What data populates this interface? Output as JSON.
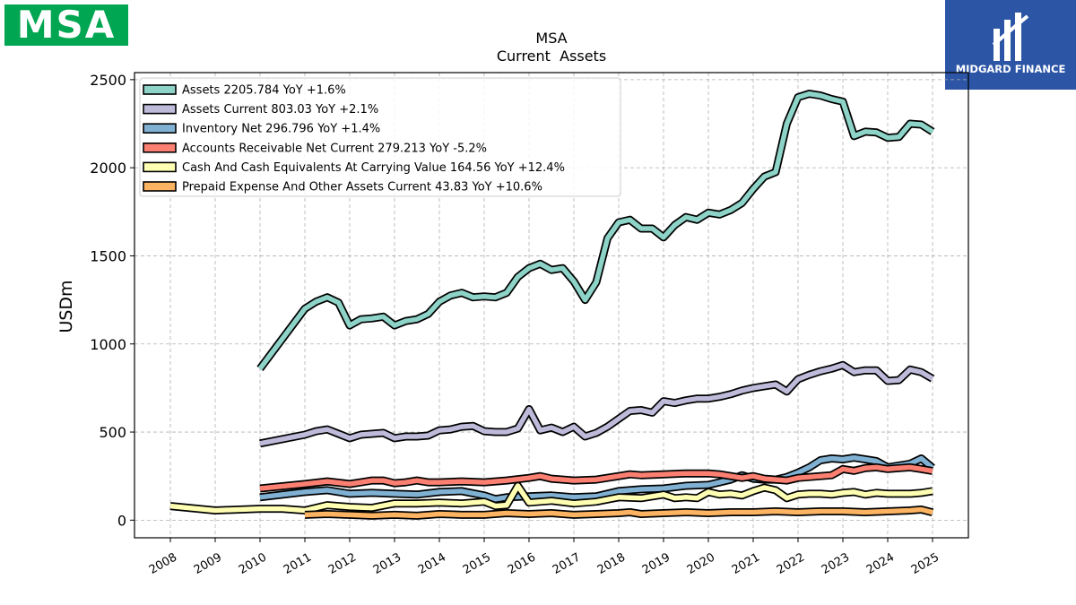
{
  "branding": {
    "left_logo_text": "MSA",
    "left_logo_color": "#00a651",
    "right_logo_text": "MIDGARD FINANCE",
    "right_logo_color": "#2c55a6"
  },
  "chart_data": {
    "type": "line",
    "title": "MSA",
    "subtitle": "Current  Assets",
    "ylabel": "USDm",
    "xlabel": "",
    "ylim": [
      -100,
      2540
    ],
    "xlim": [
      2007.2,
      2025.8
    ],
    "yticks": [
      0,
      500,
      1000,
      1500,
      2000,
      2500
    ],
    "xticks": [
      "2008",
      "2009",
      "2010",
      "2011",
      "2012",
      "2013",
      "2014",
      "2015",
      "2016",
      "2017",
      "2018",
      "2019",
      "2020",
      "2021",
      "2022",
      "2023",
      "2024",
      "2025"
    ],
    "grid": true,
    "legend_position": "top-left",
    "series": [
      {
        "name": "Assets  2205.784 YoY +1.6%",
        "color": "#8dd3c7",
        "x": [
          2010.0,
          2011.0,
          2011.25,
          2011.5,
          2011.75,
          2012.0,
          2012.25,
          2012.5,
          2012.75,
          2013.0,
          2013.25,
          2013.5,
          2013.75,
          2014.0,
          2014.25,
          2014.5,
          2014.75,
          2015.0,
          2015.25,
          2015.5,
          2015.75,
          2016.0,
          2016.25,
          2016.5,
          2016.75,
          2017.0,
          2017.25,
          2017.5,
          2017.75,
          2018.0,
          2018.25,
          2018.5,
          2018.75,
          2019.0,
          2019.25,
          2019.5,
          2019.75,
          2020.0,
          2020.25,
          2020.5,
          2020.75,
          2021.0,
          2021.25,
          2021.5,
          2021.75,
          2022.0,
          2022.25,
          2022.5,
          2022.75,
          2023.0,
          2023.25,
          2023.5,
          2023.75,
          2024.0,
          2024.25,
          2024.5,
          2024.75,
          2025.0
        ],
        "y": [
          860,
          1200,
          1240,
          1265,
          1235,
          1105,
          1140,
          1145,
          1155,
          1105,
          1130,
          1140,
          1170,
          1240,
          1275,
          1290,
          1265,
          1270,
          1265,
          1290,
          1380,
          1430,
          1455,
          1420,
          1430,
          1355,
          1250,
          1350,
          1600,
          1690,
          1705,
          1655,
          1655,
          1605,
          1675,
          1720,
          1705,
          1745,
          1735,
          1760,
          1800,
          1880,
          1950,
          1975,
          2250,
          2400,
          2420,
          2410,
          2390,
          2375,
          2180,
          2205,
          2200,
          2170,
          2175,
          2250,
          2245,
          2205
        ]
      },
      {
        "name": "Assets Current  803.03 YoY +2.1%",
        "color": "#bebada",
        "x": [
          2010.0,
          2011.0,
          2011.25,
          2011.5,
          2011.75,
          2012.0,
          2012.25,
          2012.5,
          2012.75,
          2013.0,
          2013.25,
          2013.5,
          2013.75,
          2014.0,
          2014.25,
          2014.5,
          2014.75,
          2015.0,
          2015.25,
          2015.5,
          2015.75,
          2016.0,
          2016.25,
          2016.5,
          2016.75,
          2017.0,
          2017.25,
          2017.5,
          2017.75,
          2018.0,
          2018.25,
          2018.5,
          2018.75,
          2019.0,
          2019.25,
          2019.5,
          2019.75,
          2020.0,
          2020.25,
          2020.5,
          2020.75,
          2021.0,
          2021.25,
          2021.5,
          2021.75,
          2022.0,
          2022.25,
          2022.5,
          2022.75,
          2023.0,
          2023.25,
          2023.5,
          2023.75,
          2024.0,
          2024.25,
          2024.5,
          2024.75,
          2025.0
        ],
        "y": [
          435,
          485,
          505,
          515,
          490,
          465,
          485,
          490,
          495,
          465,
          475,
          475,
          480,
          510,
          515,
          530,
          535,
          505,
          500,
          500,
          520,
          630,
          510,
          525,
          500,
          530,
          475,
          495,
          530,
          575,
          620,
          625,
          610,
          675,
          665,
          680,
          690,
          690,
          700,
          715,
          735,
          750,
          760,
          770,
          730,
          800,
          825,
          845,
          860,
          880,
          840,
          850,
          850,
          790,
          795,
          855,
          840,
          803
        ]
      },
      {
        "name": "Inventory Net  296.796 YoY +1.4%",
        "color": "#80b1d3",
        "x": [
          2010.0,
          2011.0,
          2011.5,
          2012.0,
          2012.5,
          2013.0,
          2013.5,
          2014.0,
          2014.5,
          2015.0,
          2015.25,
          2015.5,
          2016.0,
          2016.5,
          2017.0,
          2017.5,
          2018.0,
          2018.5,
          2019.0,
          2019.5,
          2020.0,
          2020.25,
          2020.5,
          2020.75,
          2021.0,
          2021.25,
          2021.5,
          2021.75,
          2022.0,
          2022.25,
          2022.5,
          2022.75,
          2023.0,
          2023.25,
          2023.5,
          2023.75,
          2024.0,
          2024.25,
          2024.5,
          2024.75,
          2025.0
        ],
        "y": [
          130,
          160,
          170,
          150,
          155,
          150,
          145,
          160,
          165,
          140,
          120,
          130,
          135,
          140,
          130,
          135,
          165,
          175,
          180,
          195,
          200,
          215,
          230,
          255,
          235,
          230,
          230,
          245,
          270,
          300,
          340,
          350,
          345,
          355,
          345,
          335,
          300,
          310,
          320,
          350,
          297
        ]
      },
      {
        "name": "Accounts Receivable Net Current  279.213 YoY -5.2%",
        "color": "#fb8072",
        "x": [
          2010.0,
          2011.0,
          2011.5,
          2012.0,
          2012.25,
          2012.5,
          2012.75,
          2013.0,
          2013.25,
          2013.5,
          2013.75,
          2014.0,
          2014.5,
          2015.0,
          2015.5,
          2016.0,
          2016.25,
          2016.5,
          2017.0,
          2017.5,
          2018.0,
          2018.25,
          2018.5,
          2019.0,
          2019.5,
          2020.0,
          2020.25,
          2020.5,
          2020.75,
          2021.0,
          2021.25,
          2021.5,
          2021.75,
          2022.0,
          2022.25,
          2022.5,
          2022.75,
          2023.0,
          2023.25,
          2023.5,
          2023.75,
          2024.0,
          2024.25,
          2024.5,
          2024.75,
          2025.0
        ],
        "y": [
          180,
          205,
          220,
          205,
          215,
          225,
          225,
          210,
          215,
          225,
          215,
          215,
          220,
          215,
          225,
          240,
          250,
          235,
          225,
          230,
          250,
          260,
          255,
          260,
          265,
          265,
          260,
          250,
          240,
          250,
          235,
          230,
          225,
          240,
          245,
          250,
          255,
          290,
          280,
          295,
          300,
          290,
          295,
          300,
          290,
          279
        ]
      },
      {
        "name": "Cash And Cash Equivalents At Carrying Value  164.56 YoY +12.4%",
        "color": "#ffffb3",
        "x": [
          2008.0,
          2009.0,
          2010.0,
          2010.5,
          2011.0,
          2011.5,
          2012.0,
          2012.5,
          2013.0,
          2013.5,
          2014.0,
          2014.5,
          2015.0,
          2015.25,
          2015.5,
          2015.75,
          2016.0,
          2016.5,
          2017.0,
          2017.5,
          2018.0,
          2018.5,
          2019.0,
          2019.25,
          2019.5,
          2019.75,
          2020.0,
          2020.25,
          2020.5,
          2020.75,
          2021.0,
          2021.25,
          2021.5,
          2021.75,
          2022.0,
          2022.25,
          2022.5,
          2022.75,
          2023.0,
          2023.25,
          2023.5,
          2023.75,
          2024.0,
          2024.5,
          2024.75,
          2025.0
        ],
        "y": [
          80,
          55,
          65,
          65,
          55,
          85,
          75,
          70,
          95,
          95,
          100,
          95,
          105,
          80,
          85,
          195,
          100,
          110,
          95,
          105,
          130,
          125,
          145,
          125,
          130,
          125,
          160,
          145,
          150,
          140,
          165,
          185,
          170,
          125,
          145,
          150,
          150,
          145,
          155,
          160,
          145,
          155,
          150,
          150,
          155,
          165
        ]
      },
      {
        "name": "Prepaid Expense And Other Assets Current  43.83 YoY +10.6%",
        "color": "#fdb462",
        "x": [
          2011.0,
          2011.5,
          2012.0,
          2012.5,
          2013.0,
          2013.5,
          2014.0,
          2014.5,
          2015.0,
          2015.5,
          2016.0,
          2016.5,
          2017.0,
          2017.5,
          2018.0,
          2018.25,
          2018.5,
          2019.0,
          2019.5,
          2020.0,
          2020.5,
          2021.0,
          2021.5,
          2022.0,
          2022.5,
          2023.0,
          2023.5,
          2024.0,
          2024.5,
          2024.75,
          2025.0
        ],
        "y": [
          30,
          35,
          30,
          25,
          30,
          25,
          35,
          30,
          30,
          40,
          35,
          40,
          30,
          35,
          40,
          45,
          35,
          40,
          45,
          40,
          45,
          45,
          50,
          45,
          50,
          50,
          45,
          50,
          55,
          60,
          44
        ]
      }
    ]
  }
}
